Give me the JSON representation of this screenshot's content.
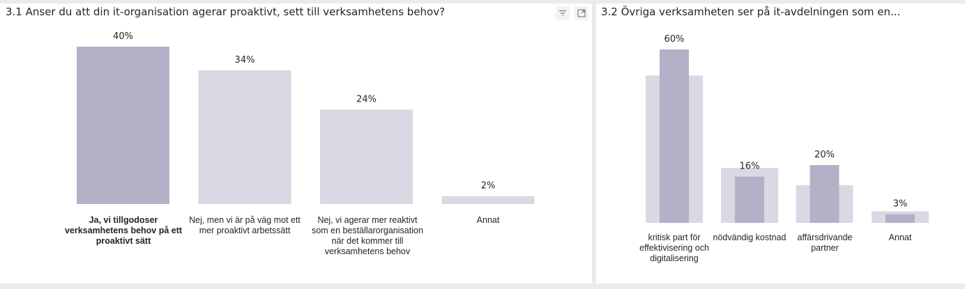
{
  "panels": [
    {
      "title": "3.1 Anser du att din it-organisation agerar proaktivt, sett till verksamhetens behov?",
      "icons": [
        "filter-icon",
        "focus-mode-icon"
      ]
    },
    {
      "title": "3.2 Övriga verksamheten ser på it-avdelningen som en..."
    }
  ],
  "colors": {
    "bar_selected": "#b4b0c8",
    "bar_light": "#dad8e3",
    "bar_inner": "#b4b0c8",
    "panel_bg": "#ffffff",
    "page_bg": "#ebebeb"
  },
  "chart_data": [
    {
      "type": "bar",
      "title": "3.1 Anser du att din it-organisation agerar proaktivt, sett till verksamhetens behov?",
      "categories": [
        "Ja, vi tillgodoser verksamhetens behov på ett proaktivt sätt",
        "Nej, men vi är på väg mot ett mer proaktivt arbetssätt",
        "Nej, vi agerar mer reaktivt som en beställarorganisation när det kommer till verksamhetens behov",
        "Annat"
      ],
      "values": [
        40,
        34,
        24,
        2
      ],
      "labels": [
        "40%",
        "34%",
        "24%",
        "2%"
      ],
      "highlighted_category": "Ja, vi tillgodoser verksamhetens behov på ett proaktivt sätt",
      "ylim": [
        0,
        40
      ]
    },
    {
      "type": "bar",
      "title": "3.2 Övriga verksamheten ser på it-avdelningen som en...",
      "categories": [
        "kritisk part för effektivisering och digitalisering",
        "nödvändig kostnad",
        "affärsdrivande partner",
        "Annat"
      ],
      "series": [
        {
          "values": [
            51,
            19,
            13,
            4
          ]
        },
        {
          "values": [
            60,
            16,
            20,
            3
          ]
        }
      ],
      "labels": [
        "60%",
        "16%",
        "20%",
        "3%"
      ],
      "ylim": [
        0,
        60
      ]
    }
  ]
}
